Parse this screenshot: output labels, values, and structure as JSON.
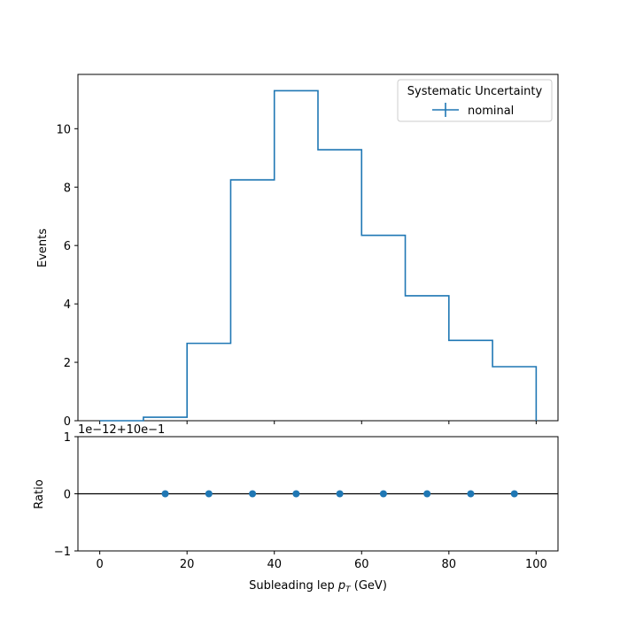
{
  "chart_data": [
    {
      "type": "line",
      "subtype": "step-histogram",
      "ylabel": "Events",
      "xlim": [
        -5,
        105
      ],
      "ylim": [
        0,
        11.86
      ],
      "bin_edges": [
        0,
        10,
        20,
        30,
        40,
        50,
        60,
        70,
        80,
        90,
        100
      ],
      "values": [
        0.0,
        0.12,
        2.65,
        8.25,
        11.3,
        9.28,
        6.35,
        4.28,
        2.75,
        1.85
      ],
      "yticks": [
        "0",
        "2",
        "4",
        "6",
        "8",
        "10"
      ],
      "legend": {
        "title": "Systematic Uncertainty",
        "entries": [
          "nominal"
        ],
        "placement": "top-right"
      },
      "series_color": "#1f77b4"
    },
    {
      "type": "scatter",
      "xlabel_prefix": "Subleading lep ",
      "xlabel_math": "p",
      "xlabel_sub": "T",
      "xlabel_suffix": " (GeV)",
      "ylabel": "Ratio",
      "offset_text": "1e−12+10e−1",
      "xlim": [
        -5,
        105
      ],
      "ylim": [
        -1,
        1
      ],
      "x": [
        15,
        25,
        35,
        45,
        55,
        65,
        75,
        85,
        95
      ],
      "y": [
        0,
        0,
        0,
        0,
        0,
        0,
        0,
        0,
        0
      ],
      "reference_line": 0,
      "xticks": [
        "0",
        "20",
        "40",
        "60",
        "80",
        "100"
      ],
      "yticks": [
        "−1",
        "0",
        "1"
      ],
      "series_color": "#1f77b4"
    }
  ]
}
